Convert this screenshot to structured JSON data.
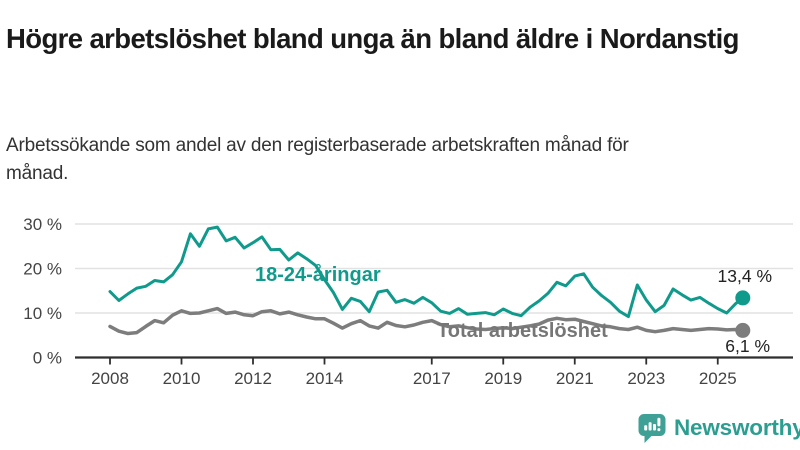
{
  "title": "Högre arbetslöshet bland unga än bland äldre i Nordanstig",
  "subtitle": "Arbetssökande som andel av den registerbaserade arbetskraften månad för månad.",
  "colors": {
    "youth_line": "#109a8c",
    "total_line": "#7d7d7d",
    "total_label_text": "#767676",
    "grid": "#e2e2e2",
    "axis": "#2f2f2f",
    "value_label_text": "#222222",
    "brand_teal": "#2b9e90"
  },
  "chart_data": {
    "type": "line",
    "title": "Högre arbetslöshet bland unga än bland äldre i Nordanstig",
    "subtitle": "Arbetssökande som andel av den registerbaserade arbetskraften månad för månad.",
    "xlabel": "",
    "ylabel": "",
    "grid": "horizontal",
    "xlim": [
      2007.6,
      2026.1
    ],
    "ylim": [
      0,
      32
    ],
    "x_ticks": [
      "2008",
      "2010",
      "2012",
      "2014",
      "2017",
      "2019",
      "2021",
      "2023",
      "2025"
    ],
    "x_tick_years": [
      2008,
      2010,
      2012,
      2014,
      2017,
      2019,
      2021,
      2023,
      2025
    ],
    "y_ticks": [
      "30 %",
      "20 %",
      "10 %",
      "0 %"
    ],
    "y_tick_values": [
      30,
      20,
      10,
      0
    ],
    "legend_position": "inline-labels",
    "series": [
      {
        "name": "18-24-åringar",
        "label": "18-24-åringar",
        "end_label": "13,4 %",
        "end_value": 13.4,
        "color": "#109a8c",
        "x": [
          2008.0,
          2008.25,
          2008.5,
          2008.75,
          2009.0,
          2009.25,
          2009.5,
          2009.75,
          2010.0,
          2010.25,
          2010.5,
          2010.75,
          2011.0,
          2011.25,
          2011.5,
          2011.75,
          2012.0,
          2012.25,
          2012.5,
          2012.75,
          2013.0,
          2013.25,
          2013.5,
          2013.75,
          2014.0,
          2014.25,
          2014.5,
          2014.75,
          2015.0,
          2015.25,
          2015.5,
          2015.75,
          2016.0,
          2016.25,
          2016.5,
          2016.75,
          2017.0,
          2017.25,
          2017.5,
          2017.75,
          2018.0,
          2018.25,
          2018.5,
          2018.75,
          2019.0,
          2019.25,
          2019.5,
          2019.75,
          2020.0,
          2020.25,
          2020.5,
          2020.75,
          2021.0,
          2021.25,
          2021.5,
          2021.75,
          2022.0,
          2022.25,
          2022.5,
          2022.75,
          2023.0,
          2023.25,
          2023.5,
          2023.75,
          2024.0,
          2024.25,
          2024.5,
          2024.75,
          2025.0,
          2025.25,
          2025.5,
          2025.7
        ],
        "values": [
          14.8,
          12.8,
          14.3,
          15.6,
          16.0,
          17.3,
          17.0,
          18.6,
          21.5,
          27.8,
          25.0,
          28.9,
          29.3,
          26.2,
          27.0,
          24.6,
          25.8,
          27.1,
          24.2,
          24.3,
          21.9,
          23.5,
          22.2,
          20.7,
          17.5,
          14.6,
          10.8,
          13.3,
          12.6,
          10.3,
          14.7,
          15.1,
          12.4,
          13.0,
          12.2,
          13.5,
          12.3,
          10.4,
          9.9,
          11.0,
          9.7,
          9.9,
          10.1,
          9.6,
          10.9,
          9.9,
          9.4,
          11.3,
          12.7,
          14.4,
          16.9,
          16.1,
          18.3,
          18.8,
          15.8,
          13.9,
          12.4,
          10.4,
          9.2,
          16.3,
          12.9,
          10.3,
          11.7,
          15.4,
          14.1,
          12.9,
          13.5,
          12.2,
          11.0,
          10.0,
          12.1,
          13.4
        ]
      },
      {
        "name": "Total arbetslöshet",
        "label": "Total arbetslöshet",
        "end_label": "6,1 %",
        "end_value": 6.1,
        "color": "#7d7d7d",
        "x": [
          2008.0,
          2008.25,
          2008.5,
          2008.75,
          2009.0,
          2009.25,
          2009.5,
          2009.75,
          2010.0,
          2010.25,
          2010.5,
          2010.75,
          2011.0,
          2011.25,
          2011.5,
          2011.75,
          2012.0,
          2012.25,
          2012.5,
          2012.75,
          2013.0,
          2013.25,
          2013.5,
          2013.75,
          2014.0,
          2014.25,
          2014.5,
          2014.75,
          2015.0,
          2015.25,
          2015.5,
          2015.75,
          2016.0,
          2016.25,
          2016.5,
          2016.75,
          2017.0,
          2017.25,
          2017.5,
          2017.75,
          2018.0,
          2018.25,
          2018.5,
          2018.75,
          2019.0,
          2019.25,
          2019.5,
          2019.75,
          2020.0,
          2020.25,
          2020.5,
          2020.75,
          2021.0,
          2021.25,
          2021.5,
          2021.75,
          2022.0,
          2022.25,
          2022.5,
          2022.75,
          2023.0,
          2023.25,
          2023.5,
          2023.75,
          2024.0,
          2024.25,
          2024.5,
          2024.75,
          2025.0,
          2025.25,
          2025.5,
          2025.7
        ],
        "values": [
          7.0,
          5.9,
          5.4,
          5.6,
          7.0,
          8.3,
          7.8,
          9.5,
          10.5,
          9.9,
          10.0,
          10.5,
          11.0,
          9.9,
          10.2,
          9.6,
          9.4,
          10.3,
          10.5,
          9.8,
          10.2,
          9.6,
          9.1,
          8.7,
          8.7,
          7.7,
          6.6,
          7.6,
          8.3,
          7.1,
          6.6,
          7.9,
          7.2,
          6.9,
          7.3,
          7.9,
          8.3,
          7.4,
          6.9,
          7.1,
          6.7,
          6.4,
          6.3,
          6.5,
          6.7,
          6.5,
          6.8,
          7.1,
          7.5,
          8.4,
          8.8,
          8.5,
          8.6,
          8.1,
          7.6,
          7.1,
          6.9,
          6.5,
          6.3,
          6.8,
          6.1,
          5.8,
          6.1,
          6.5,
          6.3,
          6.1,
          6.3,
          6.5,
          6.4,
          6.2,
          6.3,
          6.1
        ]
      }
    ]
  },
  "branding": {
    "logo_text": "Newsworthy",
    "logo_icon": "bar-chart-speech-bubble-icon"
  }
}
